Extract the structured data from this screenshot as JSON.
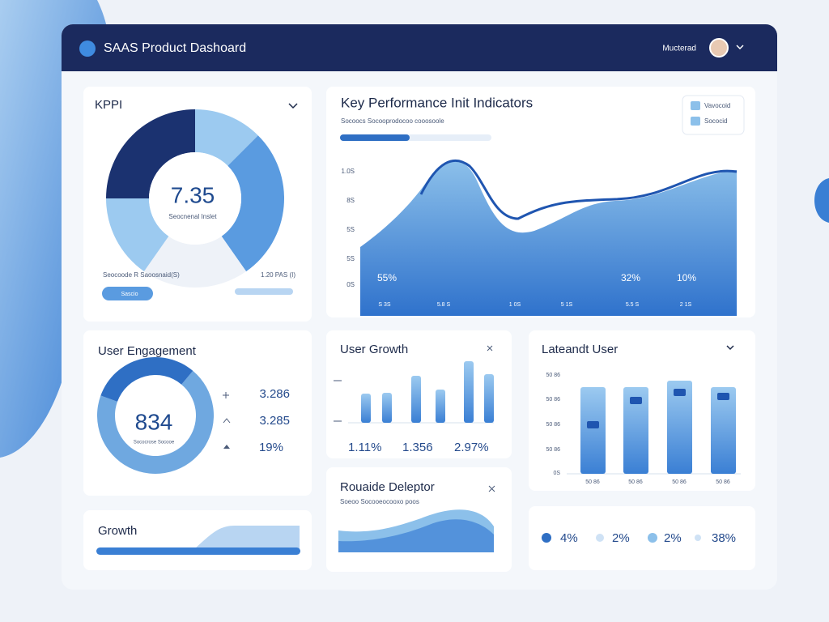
{
  "header": {
    "title": "SAAS Product Dashoard",
    "user": "Mucterad"
  },
  "kpi": {
    "title": "KPPI",
    "value": "7.35",
    "caption": "Seocnenal Inslet",
    "left_note": "Seocoode R Saoosnaid(S)",
    "right_note": "1.20 PAS (I)",
    "button": "Sascio"
  },
  "performance": {
    "title": "Key Performance Init Indicators",
    "subtitle": "Socoocs Socooprodocoo cooosoole",
    "legend": [
      "Vavocoid",
      "Sococid"
    ],
    "y_labels": [
      "1.0S",
      "8S",
      "5S",
      "5S",
      "0S"
    ],
    "callouts": [
      "55%",
      "32%",
      "10%"
    ],
    "x_labels": [
      "S 3S",
      "5.8 S",
      "1 0S",
      "5 1S",
      "5.5 S",
      "2 1S"
    ]
  },
  "engagement": {
    "title": "User Engagement",
    "value": "834",
    "caption": "Sococrose Socooe",
    "stats": [
      "3.286",
      "3.285",
      "19%"
    ]
  },
  "user_growth": {
    "title": "User Growth",
    "stats": [
      "1.11%",
      "1.356",
      "2.97%"
    ]
  },
  "latest": {
    "title": "Lateandt User",
    "y_labels": [
      "50 86",
      "50 86",
      "50 86",
      "50 86",
      "0S"
    ],
    "x_labels": [
      "50 86",
      "50 86",
      "50 86",
      "50 86"
    ]
  },
  "developer": {
    "title": "Rouaide Deleptor",
    "subtitle": "Soeoo Socooeocooxo poos"
  },
  "growth": {
    "title": "Growth"
  },
  "summary": {
    "stats": [
      "4%",
      "2%",
      "2%",
      "38%"
    ]
  }
}
